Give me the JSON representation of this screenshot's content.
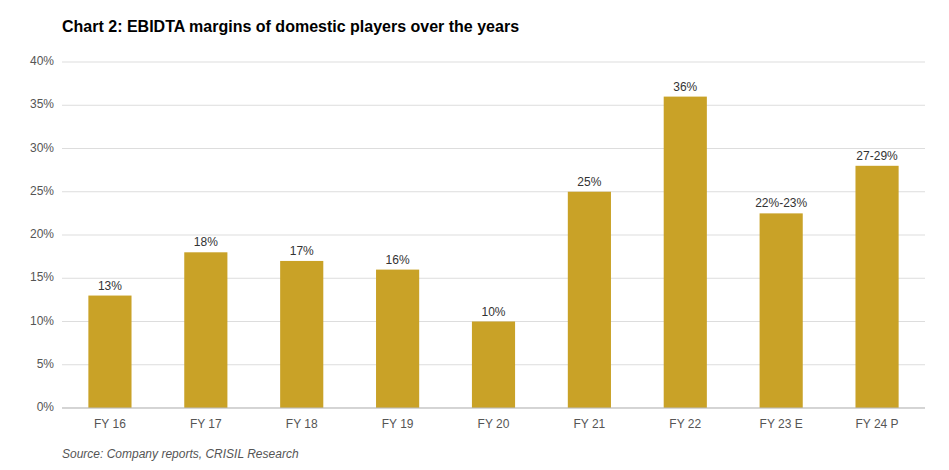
{
  "chart_data": {
    "type": "bar",
    "title": "Chart 2: EBIDTA margins of domestic players over the years",
    "source": "Source: Company reports, CRISIL Research",
    "categories": [
      "FY 16",
      "FY 17",
      "FY 18",
      "FY 19",
      "FY 20",
      "FY 21",
      "FY 22",
      "FY 23 E",
      "FY 24 P"
    ],
    "values": [
      13,
      18,
      17,
      16,
      10,
      25,
      36,
      22.5,
      28
    ],
    "value_labels": [
      "13%",
      "18%",
      "17%",
      "16%",
      "10%",
      "25%",
      "36%",
      "22%-23%",
      "27-29%"
    ],
    "data_labels": true,
    "color": "#C9A227",
    "ylim": [
      0,
      40
    ],
    "yticks": [
      {
        "value": 0,
        "label": "0%"
      },
      {
        "value": 5,
        "label": "5%"
      },
      {
        "value": 10,
        "label": "10%"
      },
      {
        "value": 15,
        "label": "15%"
      },
      {
        "value": 20,
        "label": "20%"
      },
      {
        "value": 25,
        "label": "25%"
      },
      {
        "value": 30,
        "label": "30%"
      },
      {
        "value": 35,
        "label": "35%"
      },
      {
        "value": 40,
        "label": "40%"
      }
    ],
    "grid": true
  }
}
